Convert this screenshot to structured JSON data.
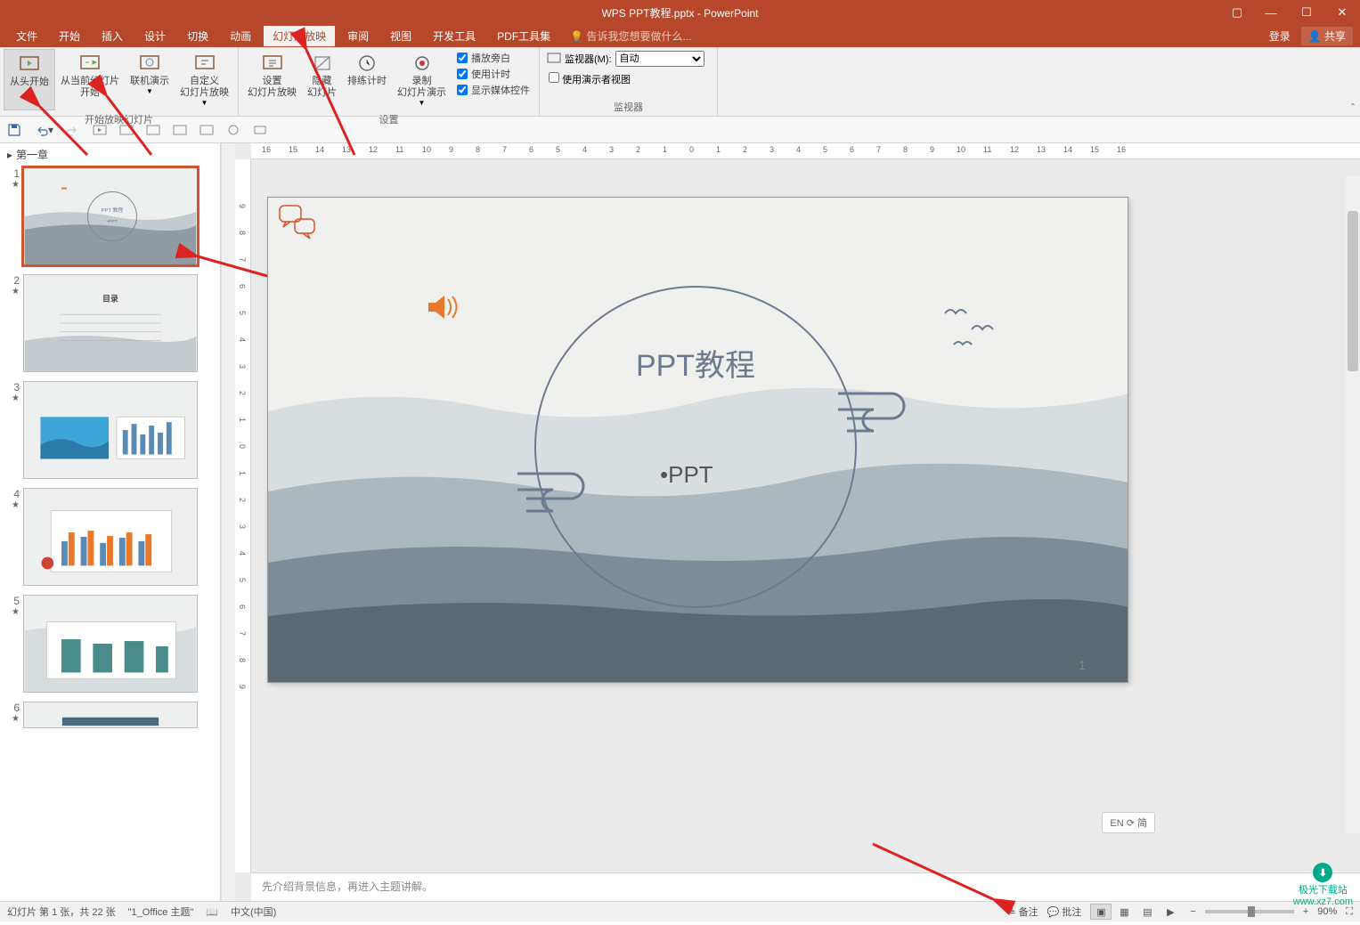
{
  "titlebar": {
    "title": "WPS PPT教程.pptx - PowerPoint"
  },
  "menu": {
    "tabs": [
      "文件",
      "开始",
      "插入",
      "设计",
      "切换",
      "动画",
      "幻灯片放映",
      "审阅",
      "视图",
      "开发工具",
      "PDF工具集"
    ],
    "active_index": 6,
    "tell_me_icon": "💡",
    "tell_me": "告诉我您想要做什么...",
    "login": "登录",
    "share": "共享"
  },
  "ribbon": {
    "group1": {
      "from_beginning": "从头开始",
      "from_current": "从当前幻灯片\n开始",
      "online": "联机演示",
      "custom": "自定义\n幻灯片放映",
      "label": "开始放映幻灯片"
    },
    "group2": {
      "setup": "设置\n幻灯片放映",
      "hide": "隐藏\n幻灯片",
      "rehearse": "排练计时",
      "record": "录制\n幻灯片演示",
      "narration": "播放旁白",
      "timings": "使用计时",
      "media": "显示媒体控件",
      "label": "设置"
    },
    "group3": {
      "monitor_label": "监视器(M):",
      "monitor_value": "自动",
      "presenter": "使用演示者视图",
      "label": "监视器"
    }
  },
  "section": {
    "title": "第一章"
  },
  "thumbs": [
    {
      "n": "1",
      "title_ring": true
    },
    {
      "n": "2",
      "toc": "目录"
    },
    {
      "n": "3",
      "has_pic_chart": true
    },
    {
      "n": "4",
      "has_col_chart": true
    },
    {
      "n": "5",
      "has_bar_chart": true
    },
    {
      "n": "6",
      "partial": true
    }
  ],
  "slide": {
    "main_title": "PPT教程",
    "subtitle": "•PPT",
    "page_num": "1",
    "circle_color": "#6b7a8f",
    "title_color": "#6b7a8f",
    "speaker_color": "#E8792B",
    "mountain1": "#98a6b0",
    "mountain2": "#6e7d88",
    "mountain3": "#536069"
  },
  "ruler_marks": [
    "16",
    "15",
    "14",
    "13",
    "12",
    "11",
    "10",
    "9",
    "8",
    "7",
    "6",
    "5",
    "4",
    "3",
    "2",
    "1",
    "0",
    "1",
    "2",
    "3",
    "4",
    "5",
    "6",
    "7",
    "8",
    "9",
    "10",
    "11",
    "12",
    "13",
    "14",
    "15",
    "16"
  ],
  "vruler_marks": [
    "9",
    "8",
    "7",
    "6",
    "5",
    "4",
    "3",
    "2",
    "1",
    "0",
    "1",
    "2",
    "3",
    "4",
    "5",
    "6",
    "7",
    "8",
    "9"
  ],
  "notes": {
    "placeholder": "先介绍背景信息，再进入主题讲解。"
  },
  "ime": "EN ⟳ 简",
  "status": {
    "slide_info": "幻灯片 第 1 张，共 22 张",
    "theme": "\"1_Office 主题\"",
    "lang": "中文(中国)",
    "notes_btn": "备注",
    "comments_btn": "批注",
    "zoom": "90%"
  },
  "watermark": {
    "name": "极光下载站",
    "url": "www.xz7.com"
  }
}
